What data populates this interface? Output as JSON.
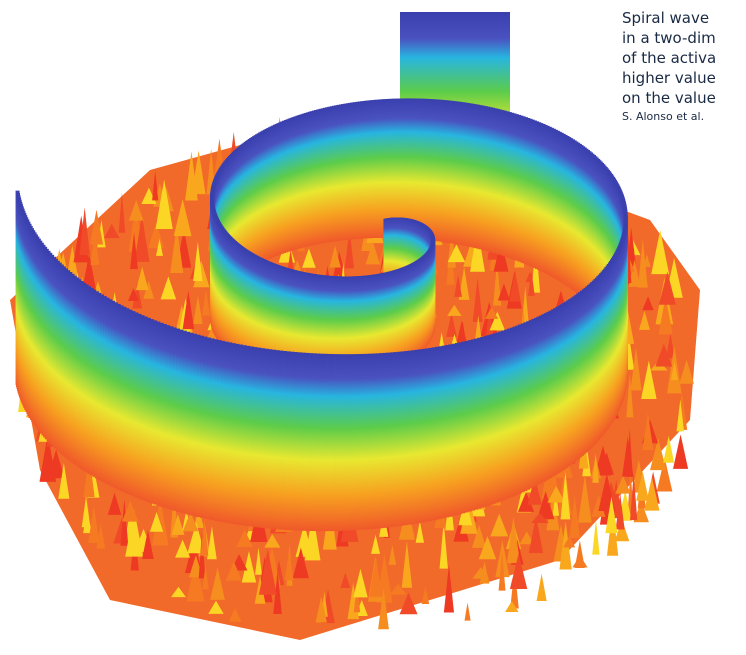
{
  "caption": {
    "lines": [
      "Spiral wave",
      "in a two-dim",
      "of the activa",
      "higher value",
      "on the value"
    ],
    "credit": "S. Alonso et al."
  }
}
